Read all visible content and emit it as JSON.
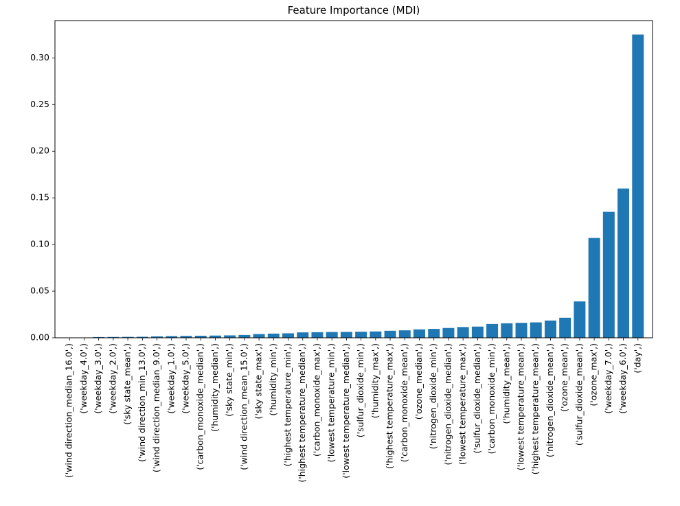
{
  "chart_data": {
    "type": "bar",
    "title": "Feature Importance (MDI)",
    "xlabel": "",
    "ylabel": "",
    "ylim": [
      0,
      0.34
    ],
    "yticks": [
      "0.00",
      "0.05",
      "0.10",
      "0.15",
      "0.20",
      "0.25",
      "0.30"
    ],
    "bar_color": "#1f77b4",
    "grid": false,
    "categories": [
      "('wind direction_median_16.0',)",
      "('weekday_4.0',)",
      "('weekday_3.0',)",
      "('weekday_2.0',)",
      "('sky state_mean',)",
      "('wind direction_min_13.0',)",
      "('wind direction_median_9.0',)",
      "('weekday_1.0',)",
      "('weekday_5.0',)",
      "('carbon_monoxide_median',)",
      "('humidity_median',)",
      "('sky state_min',)",
      "('wind direction_mean_15.0',)",
      "('sky state_max',)",
      "('humidity_min',)",
      "('highest temperature_min',)",
      "('highest temperature_median',)",
      "('carbon_monoxide_max',)",
      "('lowest temperature_min',)",
      "('lowest temperature_median',)",
      "('sulfur_dioxide_min',)",
      "('humidity_max',)",
      "('highest temperature_max',)",
      "('carbon_monoxide_mean',)",
      "('ozone_median',)",
      "('nitrogen_dioxide_min',)",
      "('nitrogen_dioxide_median',)",
      "('lowest temperature_max',)",
      "('sulfur_dioxide_median',)",
      "('carbon_monoxide_min',)",
      "('humidity_mean',)",
      "('lowest temperature_mean',)",
      "('highest temperature_mean',)",
      "('nitrogen_dioxide_mean',)",
      "('ozone_mean',)",
      "('sulfur_dioxide_mean',)",
      "('ozone_max',)",
      "('weekday_7.0',)",
      "('weekday_6.0',)",
      "('day',)"
    ],
    "values": [
      0.0001,
      0.0003,
      0.0008,
      0.0009,
      0.001,
      0.0011,
      0.0015,
      0.0018,
      0.002,
      0.0022,
      0.0024,
      0.0026,
      0.003,
      0.004,
      0.0045,
      0.0048,
      0.0058,
      0.006,
      0.0062,
      0.0063,
      0.0065,
      0.0068,
      0.0075,
      0.008,
      0.009,
      0.0095,
      0.0105,
      0.0115,
      0.012,
      0.0148,
      0.0155,
      0.016,
      0.0165,
      0.0185,
      0.0215,
      0.039,
      0.107,
      0.135,
      0.16,
      0.325
    ]
  }
}
